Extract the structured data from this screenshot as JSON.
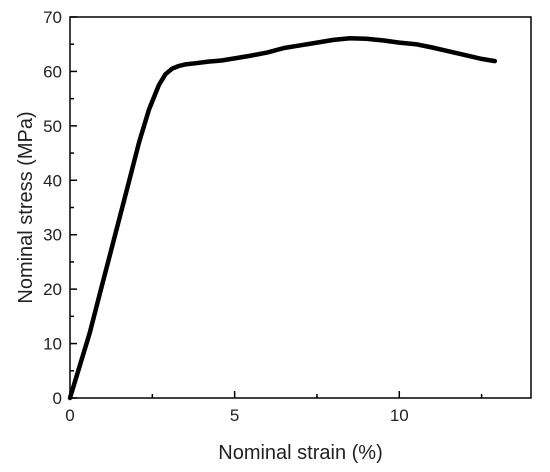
{
  "chart_data": {
    "type": "line",
    "title": "",
    "xlabel": "Nominal strain (%)",
    "ylabel": "Nominal stress (MPa)",
    "xlim": [
      0,
      14.0
    ],
    "ylim": [
      0,
      70
    ],
    "grid": false,
    "legend": "none",
    "x_ticks": [
      0,
      5,
      10
    ],
    "x_tick_labels": [
      "0",
      "5",
      "10"
    ],
    "y_ticks": [
      0,
      10,
      20,
      30,
      40,
      50,
      60,
      70
    ],
    "y_tick_labels": [
      "0",
      "10",
      "20",
      "30",
      "40",
      "50",
      "60",
      "70"
    ],
    "series": [
      {
        "color": "#000000",
        "x": [
          0,
          0.3,
          0.6,
          0.9,
          1.2,
          1.5,
          1.8,
          2.1,
          2.4,
          2.7,
          2.9,
          3.1,
          3.3,
          3.5,
          3.8,
          4.2,
          4.6,
          5.0,
          5.5,
          6.0,
          6.5,
          7.0,
          7.5,
          8.0,
          8.5,
          9.0,
          9.5,
          10.0,
          10.5,
          11.0,
          11.5,
          12.0,
          12.5,
          12.9
        ],
        "y": [
          0,
          6,
          12,
          19,
          26,
          33,
          40,
          47,
          53,
          57.5,
          59.5,
          60.5,
          61,
          61.3,
          61.5,
          61.8,
          62.0,
          62.4,
          62.9,
          63.5,
          64.3,
          64.8,
          65.3,
          65.8,
          66.1,
          66.0,
          65.7,
          65.3,
          65.0,
          64.4,
          63.7,
          63.0,
          62.3,
          61.9
        ]
      }
    ]
  }
}
